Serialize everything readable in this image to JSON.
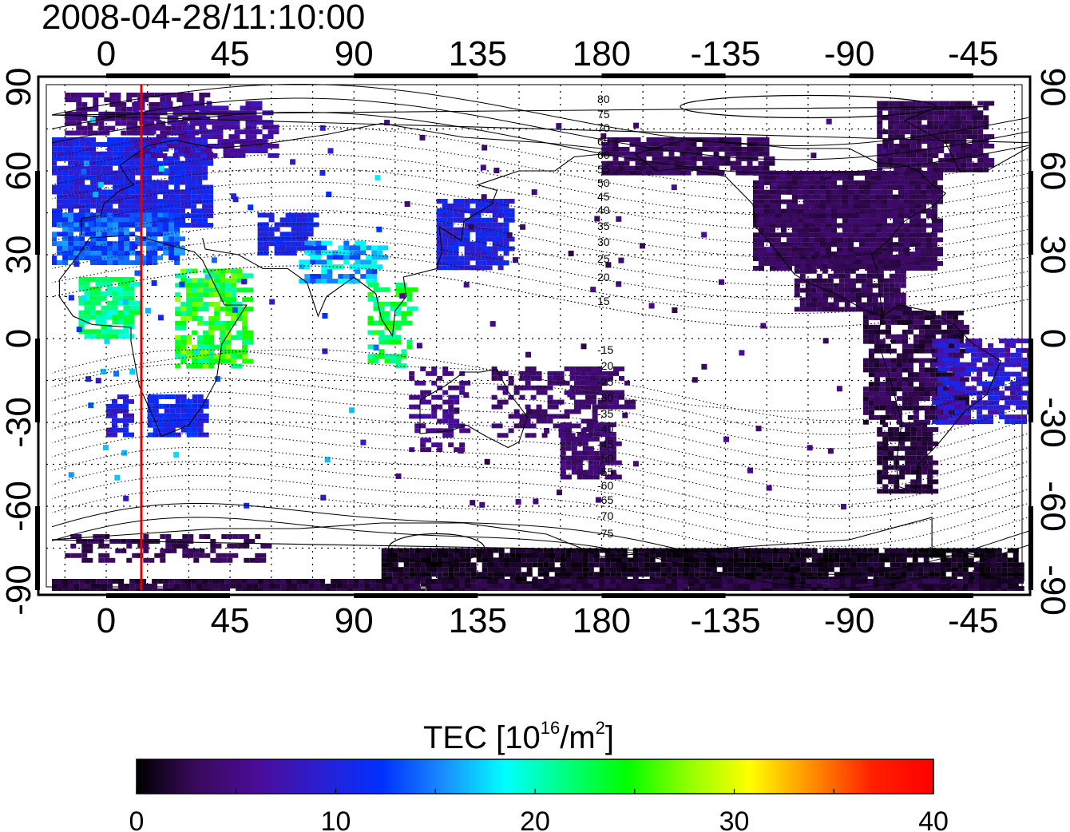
{
  "title": "2008-04-28/11:10:00",
  "map": {
    "lon_ticks": [
      "0",
      "45",
      "90",
      "135",
      "180",
      "-135",
      "-90",
      "-45"
    ],
    "lat_ticks": [
      "90",
      "60",
      "30",
      "0",
      "-30",
      "-60",
      "-90"
    ],
    "contour_labels": [
      "80",
      "75",
      "70",
      "65",
      "60",
      "55",
      "50",
      "45",
      "40",
      "35",
      "30",
      "25",
      "20",
      "15",
      "-15",
      "-20",
      "-25",
      "-30",
      "-35",
      "-40",
      "-45",
      "-50",
      "-55",
      "-60",
      "-65",
      "-70",
      "-75"
    ],
    "colors": {
      "marker_line": "#e00000",
      "frame": "#000000",
      "grid": "#000000"
    }
  },
  "colorbar": {
    "label_prefix": "TEC  [10",
    "label_exp1": "16",
    "label_mid": "/m",
    "label_exp2": "2",
    "label_suffix": "]",
    "ticks": [
      "0",
      "10",
      "20",
      "30",
      "40"
    ],
    "range": [
      0,
      40
    ],
    "stops": [
      "#000000",
      "#3a0a5e",
      "#4b0c9a",
      "#2a1fd2",
      "#0030ff",
      "#1a8cff",
      "#00ffff",
      "#00ff80",
      "#00ff00",
      "#90ff00",
      "#ffff00",
      "#ff9000",
      "#ff2000",
      "#ff0000"
    ]
  }
}
